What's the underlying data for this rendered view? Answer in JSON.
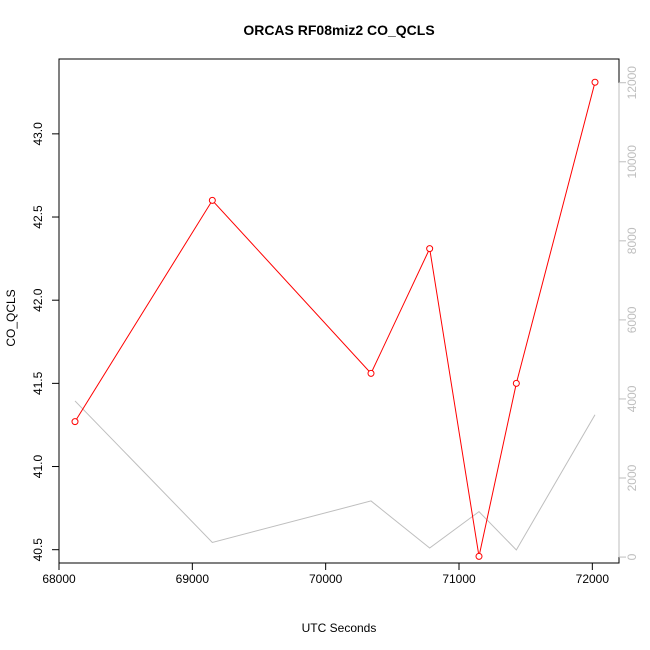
{
  "chart_data": {
    "type": "line",
    "title": "ORCAS RF08miz2 CO_QCLS",
    "xlabel": "UTC Seconds",
    "ylabel": "CO_QCLS",
    "xlim": [
      68000,
      72200
    ],
    "ylim": [
      40.42,
      43.45
    ],
    "y2lim": [
      -150,
      12600
    ],
    "x_ticks": [
      68000,
      69000,
      70000,
      71000,
      72000
    ],
    "y_ticks": [
      "40.5",
      "41.0",
      "41.5",
      "42.0",
      "42.5",
      "43.0"
    ],
    "y2_ticks": [
      "0",
      "2000",
      "4000",
      "6000",
      "8000",
      "10000",
      "12000"
    ],
    "series": [
      {
        "axis": "left",
        "color": "#ff0000",
        "style": "line+circle",
        "x": [
          68120,
          69150,
          70340,
          70780,
          71150,
          71430,
          72020
        ],
        "y": [
          41.27,
          42.6,
          41.56,
          42.31,
          40.46,
          41.5,
          43.31
        ]
      },
      {
        "axis": "right",
        "color": "#bebebe",
        "style": "line",
        "x": [
          68120,
          69150,
          70340,
          70780,
          71150,
          71430,
          72020
        ],
        "y": [
          3950,
          370,
          1420,
          230,
          1150,
          180,
          3600
        ]
      }
    ],
    "grid": false,
    "legend": "none"
  }
}
